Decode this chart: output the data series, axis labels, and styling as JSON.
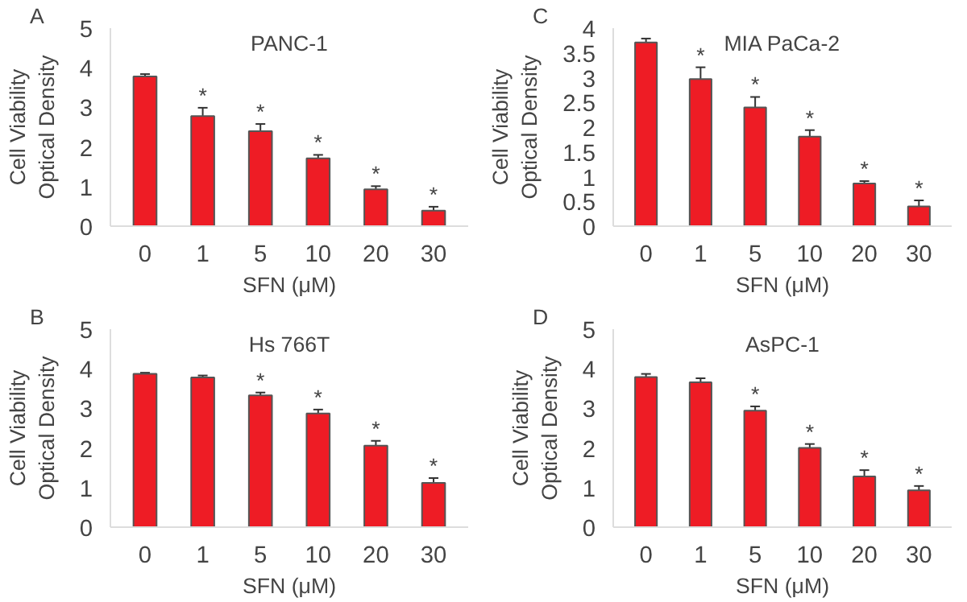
{
  "chart_data": [
    {
      "type": "bar",
      "title": "PANC-1",
      "xlabel": "SFN (μM)",
      "ylabel": "Cell Viability\nOptical Density",
      "categories": [
        "0",
        "1",
        "5",
        "10",
        "20",
        "30"
      ],
      "values": [
        3.78,
        2.78,
        2.4,
        1.71,
        0.93,
        0.39
      ],
      "errors": [
        0.06,
        0.21,
        0.18,
        0.09,
        0.08,
        0.1
      ],
      "color": "#ee1c25",
      "ylim": [
        0,
        5
      ],
      "yticks": [
        0,
        1,
        2,
        3,
        4,
        5
      ],
      "grid": false,
      "annotations": [
        "A",
        {
          "text": "*",
          "x": "1",
          "y": 2.99
        },
        {
          "text": "*",
          "x": "5",
          "y": 2.58
        },
        {
          "text": "*",
          "x": "10",
          "y": 1.8
        },
        {
          "text": "*",
          "x": "20",
          "y": 1.01
        },
        {
          "text": "*",
          "x": "30",
          "y": 0.49
        }
      ]
    },
    {
      "type": "bar",
      "title": "MIA PaCa-2",
      "xlabel": "SFN (μM)",
      "ylabel": "Cell Viability\nOptical Density",
      "categories": [
        "0",
        "1",
        "5",
        "10",
        "20",
        "30"
      ],
      "values": [
        3.71,
        2.97,
        2.4,
        1.81,
        0.86,
        0.4
      ],
      "errors": [
        0.08,
        0.24,
        0.21,
        0.13,
        0.05,
        0.12
      ],
      "color": "#ee1c25",
      "ylim": [
        0,
        4
      ],
      "yticks": [
        0,
        0.5,
        1,
        1.5,
        2,
        2.5,
        3,
        3.5,
        4
      ],
      "grid": false,
      "annotations": [
        "C",
        {
          "text": "*",
          "x": "1",
          "y": 3.21
        },
        {
          "text": "*",
          "x": "5",
          "y": 2.61
        },
        {
          "text": "*",
          "x": "10",
          "y": 1.94
        },
        {
          "text": "*",
          "x": "20",
          "y": 0.91
        },
        {
          "text": "*",
          "x": "30",
          "y": 0.52
        }
      ]
    },
    {
      "type": "bar",
      "title": "Hs 766T",
      "xlabel": "SFN (μM)",
      "ylabel": "Cell Viability\nOptical Density",
      "categories": [
        "0",
        "1",
        "5",
        "10",
        "20",
        "30"
      ],
      "values": [
        3.87,
        3.78,
        3.33,
        2.87,
        2.06,
        1.12
      ],
      "errors": [
        0.03,
        0.05,
        0.07,
        0.1,
        0.12,
        0.12
      ],
      "color": "#ee1c25",
      "ylim": [
        0,
        5
      ],
      "yticks": [
        0,
        1,
        2,
        3,
        4,
        5
      ],
      "grid": false,
      "annotations": [
        "B",
        {
          "text": "*",
          "x": "5",
          "y": 3.4
        },
        {
          "text": "*",
          "x": "10",
          "y": 2.97
        },
        {
          "text": "*",
          "x": "20",
          "y": 2.18
        },
        {
          "text": "*",
          "x": "30",
          "y": 1.24
        }
      ]
    },
    {
      "type": "bar",
      "title": "AsPC-1",
      "xlabel": "SFN (μM)",
      "ylabel": "Cell Viability\nOptical Density",
      "categories": [
        "0",
        "1",
        "5",
        "10",
        "20",
        "30"
      ],
      "values": [
        3.79,
        3.66,
        2.94,
        2.0,
        1.28,
        0.93
      ],
      "errors": [
        0.08,
        0.1,
        0.11,
        0.1,
        0.16,
        0.11
      ],
      "color": "#ee1c25",
      "ylim": [
        0,
        5
      ],
      "yticks": [
        0,
        1,
        2,
        3,
        4,
        5
      ],
      "grid": false,
      "annotations": [
        "D",
        {
          "text": "*",
          "x": "5",
          "y": 3.05
        },
        {
          "text": "*",
          "x": "10",
          "y": 2.1
        },
        {
          "text": "*",
          "x": "20",
          "y": 1.44
        },
        {
          "text": "*",
          "x": "30",
          "y": 1.04
        }
      ]
    }
  ]
}
